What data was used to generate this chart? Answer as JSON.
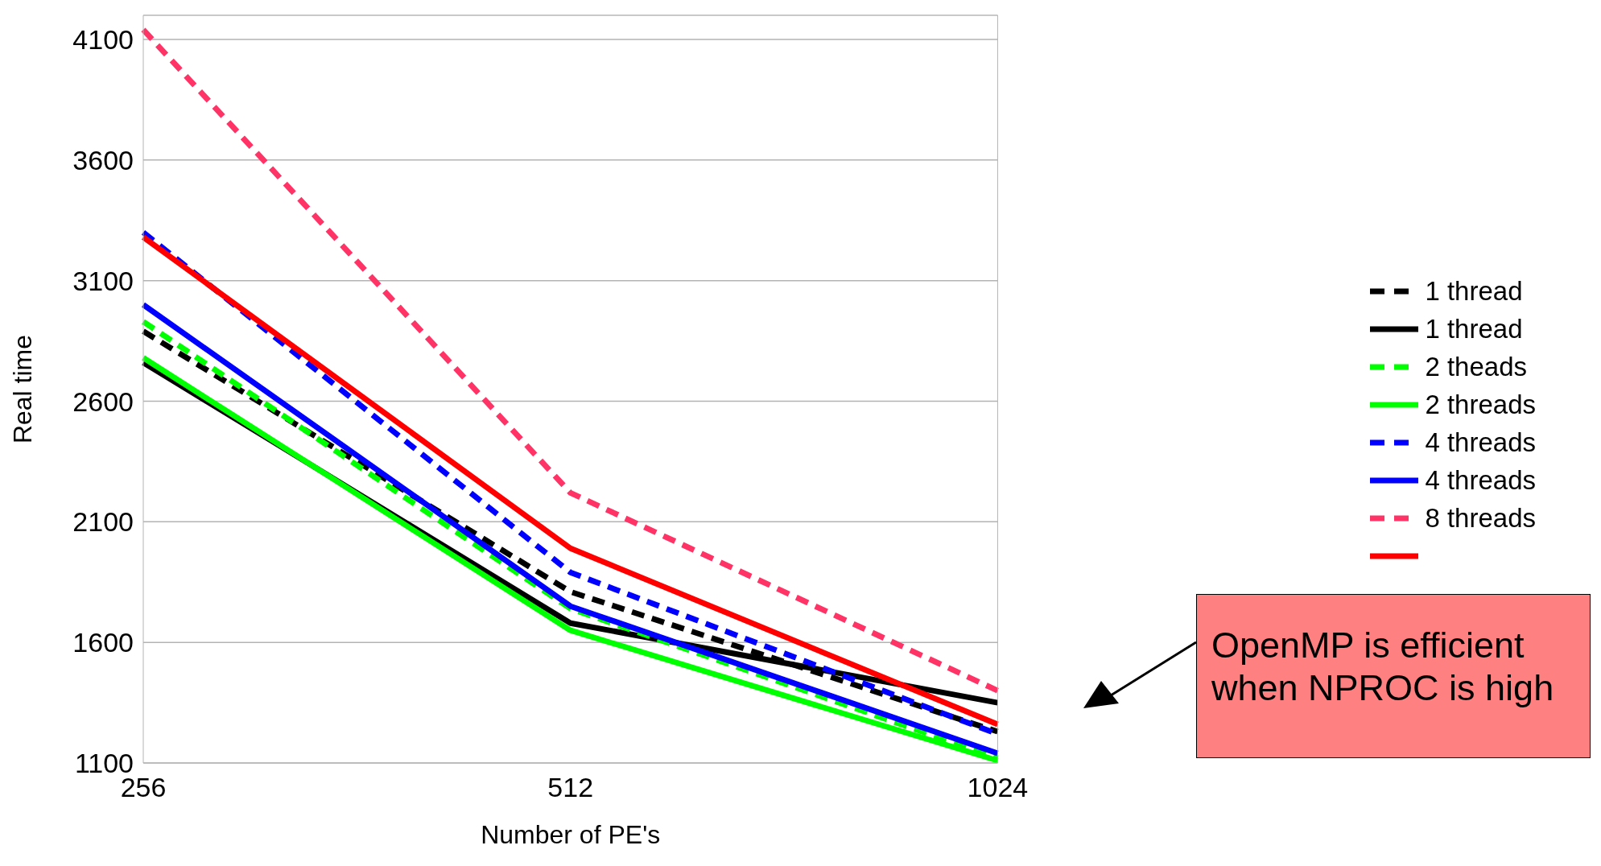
{
  "chart_data": {
    "type": "line",
    "xlabel": "Number of PE's",
    "ylabel": "Real time",
    "categories": [
      "256",
      "512",
      "1024"
    ],
    "ylim": [
      1100,
      4200
    ],
    "yticks": [
      1100,
      1600,
      2100,
      2600,
      3100,
      3600,
      4100
    ],
    "grid": "y",
    "legend": "right",
    "marker": "none",
    "series": [
      {
        "name": "1 thread",
        "color": "#000000",
        "line_style": "dashed",
        "values": [
          2890,
          1810,
          1230
        ]
      },
      {
        "name": "1 thread",
        "color": "#000000",
        "line_style": "solid",
        "values": [
          2760,
          1680,
          1350
        ]
      },
      {
        "name": "2 theads",
        "color": "#00ff00",
        "line_style": "dashed",
        "values": [
          2930,
          1740,
          1120
        ]
      },
      {
        "name": "2 threads",
        "color": "#00ff00",
        "line_style": "solid",
        "values": [
          2780,
          1650,
          1110
        ]
      },
      {
        "name": "4 threads",
        "color": "#0000ff",
        "line_style": "dashed",
        "values": [
          3300,
          1890,
          1220
        ]
      },
      {
        "name": "4 threads",
        "color": "#0000ff",
        "line_style": "solid",
        "values": [
          3000,
          1750,
          1140
        ]
      },
      {
        "name": "8 threads",
        "color": "#ff3366",
        "line_style": "dashed",
        "values": [
          4140,
          2220,
          1400
        ]
      },
      {
        "color": "#ff0000",
        "line_style": "solid",
        "values": [
          3280,
          1990,
          1260
        ]
      }
    ],
    "annotations": [
      "OpenMP is efficient when NPROC is high"
    ]
  }
}
